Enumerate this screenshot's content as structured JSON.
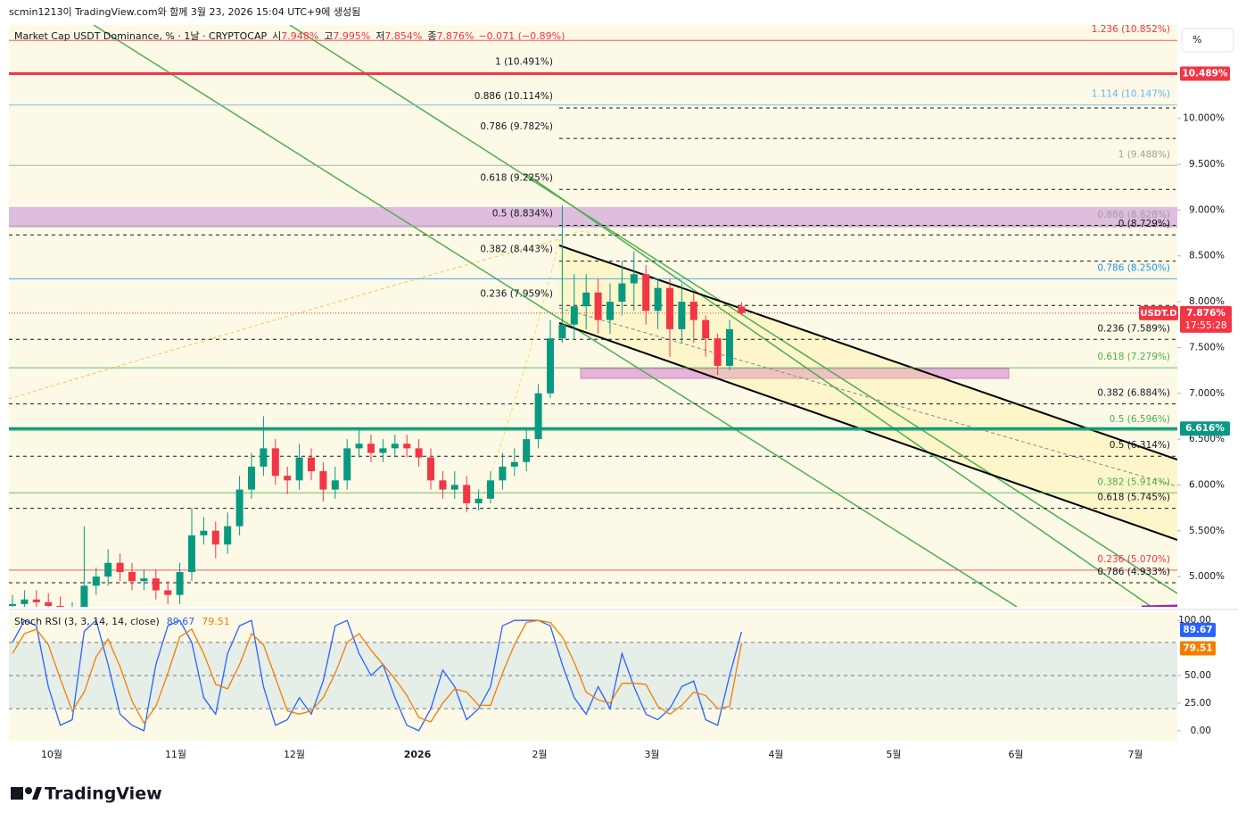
{
  "chart_data": {
    "type": "candlestick",
    "header": "scmin1213이 TradingView.com와 함께 3월 23, 2026 15:04 UTC+9에 생성됨",
    "title": "Market Cap USDT Dominance, % · 1날 · CRYPTOCAP",
    "ohlc_legend": [
      {
        "label": "시",
        "value": "7.948%"
      },
      {
        "label": "고",
        "value": "7.995%"
      },
      {
        "label": "저",
        "value": "7.854%"
      },
      {
        "label": "종",
        "value": "7.876%"
      }
    ],
    "change": "−0.071 (−0.89%)",
    "unit_button": "%",
    "brand": "TradingView",
    "series": [
      {
        "name": "USDT.D",
        "color_up": "#089981",
        "color_down": "#f23645",
        "open": [
          4.68,
          4.7,
          4.75,
          4.72,
          4.68,
          4.6,
          4.62,
          4.9,
          5.0,
          5.15,
          5.05,
          4.95,
          4.98,
          4.85,
          4.8,
          5.05,
          5.45,
          5.5,
          5.35,
          5.55,
          5.95,
          6.2,
          6.4,
          6.1,
          6.05,
          6.3,
          6.15,
          5.95,
          6.05,
          6.4,
          6.45,
          6.35,
          6.4,
          6.45,
          6.4,
          6.3,
          6.05,
          5.95,
          6.0,
          5.8,
          5.85,
          6.05,
          6.2,
          6.25,
          6.5,
          7.0,
          7.6,
          7.75,
          7.95,
          8.1,
          7.8,
          8.0,
          8.2,
          8.3,
          7.9,
          8.15,
          7.7,
          8.0,
          7.8,
          7.6,
          7.3,
          7.948
        ],
        "high": [
          4.8,
          4.85,
          4.85,
          4.82,
          4.78,
          4.72,
          5.55,
          5.1,
          5.3,
          5.25,
          5.15,
          5.08,
          5.08,
          4.95,
          5.15,
          5.75,
          5.65,
          5.6,
          5.7,
          6.1,
          6.35,
          6.75,
          6.5,
          6.2,
          6.45,
          6.4,
          6.25,
          6.2,
          6.5,
          6.6,
          6.55,
          6.5,
          6.55,
          6.55,
          6.5,
          6.4,
          6.15,
          6.15,
          6.1,
          5.95,
          6.15,
          6.35,
          6.4,
          6.6,
          7.1,
          7.8,
          9.05,
          8.3,
          8.3,
          8.25,
          8.2,
          8.45,
          8.55,
          8.4,
          8.25,
          8.25,
          8.2,
          8.1,
          7.85,
          7.65,
          7.8,
          7.995
        ],
        "low": [
          4.58,
          4.6,
          4.62,
          4.58,
          4.5,
          4.5,
          4.52,
          4.8,
          4.9,
          4.95,
          4.85,
          4.85,
          4.75,
          4.7,
          4.7,
          4.95,
          5.35,
          5.2,
          5.25,
          5.45,
          5.85,
          6.1,
          6.0,
          5.9,
          5.95,
          6.05,
          5.82,
          5.85,
          5.95,
          6.3,
          6.25,
          6.25,
          6.3,
          6.3,
          6.2,
          5.95,
          5.85,
          5.85,
          5.7,
          5.72,
          5.8,
          5.95,
          6.1,
          6.15,
          6.4,
          6.95,
          7.55,
          7.6,
          7.7,
          7.65,
          7.65,
          7.85,
          7.9,
          7.75,
          7.7,
          7.4,
          7.55,
          7.55,
          7.4,
          7.2,
          7.25,
          7.854
        ],
        "close": [
          4.7,
          4.75,
          4.72,
          4.68,
          4.6,
          4.62,
          4.9,
          5.0,
          5.15,
          5.05,
          4.95,
          4.98,
          4.85,
          4.8,
          5.05,
          5.45,
          5.5,
          5.35,
          5.55,
          5.95,
          6.2,
          6.4,
          6.1,
          6.05,
          6.3,
          6.15,
          5.95,
          6.05,
          6.4,
          6.45,
          6.35,
          6.4,
          6.45,
          6.4,
          6.3,
          6.05,
          5.95,
          6.0,
          5.8,
          5.85,
          6.05,
          6.2,
          6.25,
          6.5,
          7.0,
          7.6,
          7.75,
          7.95,
          8.1,
          7.8,
          8.0,
          8.2,
          8.3,
          7.9,
          8.15,
          7.7,
          8.0,
          7.8,
          7.6,
          7.3,
          7.7,
          7.876
        ]
      }
    ],
    "ylim": [
      4.67,
      11.02
    ],
    "yticks": [
      {
        "value": 10,
        "label": "10.000%"
      },
      {
        "value": 9.5,
        "label": "9.500%"
      },
      {
        "value": 9,
        "label": "9.000%"
      },
      {
        "value": 8.5,
        "label": "8.500%"
      },
      {
        "value": 8,
        "label": "8.000%"
      },
      {
        "value": 7.5,
        "label": "7.500%"
      },
      {
        "value": 7,
        "label": "7.000%"
      },
      {
        "value": 6.5,
        "label": "6.500%"
      },
      {
        "value": 6,
        "label": "6.000%"
      },
      {
        "value": 5.5,
        "label": "5.500%"
      },
      {
        "value": 5,
        "label": "5.000%"
      }
    ],
    "left_fib_levels": [
      {
        "label": "1 (10.491%)",
        "value": 10.491
      },
      {
        "label": "0.886 (10.114%)",
        "value": 10.114
      },
      {
        "label": "0.786 (9.782%)",
        "value": 9.782
      },
      {
        "label": "0.618 (9.225%)",
        "value": 9.225
      },
      {
        "label": "0.5 (8.834%)",
        "value": 8.834
      },
      {
        "label": "0.382 (8.443%)",
        "value": 8.443
      },
      {
        "label": "0.236 (7.959%)",
        "value": 7.959
      }
    ],
    "right_levels": [
      {
        "label": "1.236 (10.852%)",
        "value": 10.852,
        "color": "#f23645",
        "dashed": false
      },
      {
        "label": "1.114 (10.147%)",
        "value": 10.147,
        "color": "#64b5f6",
        "dashed": false
      },
      {
        "label": "1 (9.488%)",
        "value": 9.488,
        "color": "#9e9e9e",
        "dashed": false
      },
      {
        "label": "0.886 (8.828%)",
        "value": 8.828,
        "color": "#9e9e9e",
        "dashed": false
      },
      {
        "label": "0 (8.729%)",
        "value": 8.729,
        "color": "#131722",
        "dashed": true
      },
      {
        "label": "0.786 (8.250%)",
        "value": 8.25,
        "color": "#2196f3",
        "dashed": false
      },
      {
        "label": "0.236 (7.589%)",
        "value": 7.589,
        "color": "#131722",
        "dashed": true
      },
      {
        "label": "0.618 (7.279%)",
        "value": 7.279,
        "color": "#4caf50",
        "dashed": false
      },
      {
        "label": "0.382 (6.884%)",
        "value": 6.884,
        "color": "#131722",
        "dashed": true
      },
      {
        "label": "0.5 (6.596%)",
        "value": 6.596,
        "color": "#4caf50",
        "dashed": false
      },
      {
        "label": "0.5 (6.314%)",
        "value": 6.314,
        "color": "#131722",
        "dashed": true
      },
      {
        "label": "0.382 (5.914%)",
        "value": 5.914,
        "color": "#4caf50",
        "dashed": false
      },
      {
        "label": "0.618 (5.745%)",
        "value": 5.745,
        "color": "#131722",
        "dashed": true
      },
      {
        "label": "0.236 (5.070%)",
        "value": 5.07,
        "color": "#f23645",
        "dashed": false
      },
      {
        "label": "0.786 (4.933%)",
        "value": 4.933,
        "color": "#131722",
        "dashed": true
      }
    ],
    "key_levels": [
      {
        "value": 10.489,
        "label": "10.489%",
        "color": "#f23645"
      },
      {
        "value": 6.616,
        "label": "6.616%",
        "color": "#089981"
      }
    ],
    "last_price": {
      "value": 7.876,
      "label": "7.876%",
      "countdown": "17:55:28",
      "color": "#f23645"
    },
    "time_labels": [
      "10월",
      "11월",
      "12월",
      "2026",
      "2월",
      "3월",
      "4월",
      "5월",
      "6월",
      "7월"
    ],
    "indicator": {
      "title": "Stoch RSI (3, 3, 14, 14, close)",
      "ylim": [
        -9,
        107.4
      ],
      "yticks": [
        {
          "value": 100,
          "label": "100.00"
        },
        {
          "value": 50,
          "label": "50.00"
        },
        {
          "value": 25,
          "label": "25.00"
        },
        {
          "value": 0,
          "label": "0.00"
        }
      ],
      "series": [
        {
          "color": "#2962ff",
          "values": [
            80,
            100,
            95,
            40,
            5,
            10,
            90,
            100,
            60,
            15,
            5,
            0,
            60,
            95,
            100,
            80,
            30,
            15,
            70,
            95,
            100,
            40,
            5,
            10,
            30,
            15,
            45,
            95,
            100,
            70,
            50,
            60,
            30,
            5,
            0,
            20,
            55,
            40,
            10,
            20,
            40,
            95,
            100,
            100,
            100,
            95,
            60,
            30,
            15,
            40,
            20,
            70,
            40,
            15,
            10,
            20,
            40,
            45,
            10,
            5,
            50,
            89.67
          ]
        },
        {
          "color": "#f57c00",
          "values": [
            70,
            88,
            92,
            78,
            47,
            18,
            35,
            67,
            83,
            58,
            27,
            7,
            22,
            52,
            85,
            92,
            70,
            42,
            38,
            60,
            88,
            78,
            48,
            18,
            15,
            18,
            30,
            52,
            80,
            88,
            73,
            60,
            47,
            32,
            12,
            8,
            25,
            38,
            35,
            23,
            23,
            52,
            78,
            98,
            100,
            98,
            85,
            62,
            35,
            28,
            25,
            43,
            43,
            42,
            22,
            15,
            23,
            35,
            32,
            20,
            22,
            79.51
          ]
        }
      ]
    }
  }
}
